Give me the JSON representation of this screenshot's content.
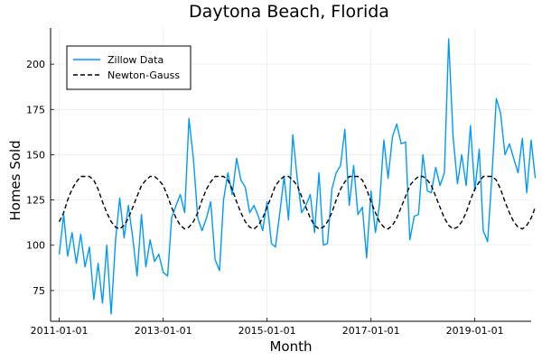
{
  "chart_data": {
    "type": "line",
    "title": "Daytona Beach, Florida",
    "xlabel": "Month",
    "ylabel": "Homes Sold",
    "x_start": "2011-01",
    "x_end": "2019-12",
    "xlim": [
      "2010-11-01",
      "2020-02-01"
    ],
    "ylim": [
      58,
      220
    ],
    "x_ticks": [
      "2011-01-01",
      "2013-01-01",
      "2015-01-01",
      "2017-01-01",
      "2019-01-01"
    ],
    "y_ticks": [
      75,
      100,
      125,
      150,
      175,
      200
    ],
    "grid": true,
    "legend_position": "top-left",
    "series": [
      {
        "name": "Zillow Data",
        "color": "#009AFA",
        "style": "solid",
        "values": [
          95,
          117,
          94,
          107,
          90,
          106,
          88,
          99,
          70,
          90,
          68,
          100,
          62,
          103,
          126,
          104,
          122,
          104,
          83,
          117,
          88,
          103,
          91,
          95,
          85,
          83,
          115,
          122,
          128,
          118,
          170,
          148,
          115,
          108,
          115,
          124,
          92,
          86,
          125,
          140,
          128,
          148,
          136,
          132,
          118,
          122,
          116,
          108,
          124,
          101,
          99,
          118,
          138,
          114,
          161,
          137,
          118,
          122,
          128,
          107,
          140,
          100,
          101,
          131,
          140,
          144,
          164,
          122,
          144,
          117,
          121,
          93,
          130,
          107,
          122,
          158,
          137,
          160,
          167,
          156,
          157,
          103,
          116,
          117,
          150,
          130,
          129,
          143,
          133,
          140,
          214,
          160,
          134,
          150,
          133,
          166,
          130,
          153,
          108,
          102,
          138,
          181,
          173,
          150,
          156,
          148,
          140,
          159,
          129,
          158,
          137
        ]
      },
      {
        "name": "Newton-Gauss",
        "color": "#000000",
        "style": "dashed",
        "values": [
          113,
          118,
          125,
          131,
          135,
          138,
          138,
          138,
          136,
          131,
          124,
          118,
          113,
          110,
          109,
          111,
          115,
          121,
          127,
          133,
          136,
          138,
          138,
          136,
          133,
          127,
          121,
          115,
          111,
          109,
          110,
          113,
          118,
          125,
          131,
          135,
          138,
          138,
          138,
          136,
          131,
          124,
          118,
          113,
          110,
          109,
          111,
          115,
          121,
          127,
          133,
          136,
          138,
          138,
          136,
          133,
          127,
          121,
          115,
          111,
          109,
          110,
          113,
          118,
          125,
          131,
          135,
          138,
          138,
          138,
          136,
          131,
          124,
          118,
          113,
          110,
          109,
          111,
          115,
          121,
          127,
          133,
          136,
          138,
          138,
          136,
          133,
          127,
          121,
          115,
          111,
          109,
          110,
          113,
          118,
          125,
          131,
          135,
          138,
          138,
          138,
          136,
          131,
          124,
          118,
          113,
          110,
          109,
          111,
          115,
          121
        ]
      }
    ]
  }
}
